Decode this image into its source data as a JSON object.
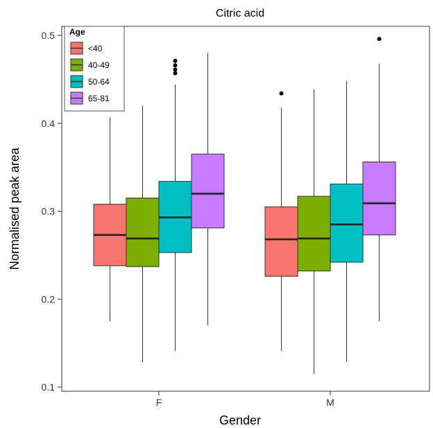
{
  "chart_data": {
    "type": "boxplot",
    "title": "Citric acid",
    "xlabel": "Gender",
    "ylabel": "Normalised peak area",
    "categories": [
      "F",
      "M"
    ],
    "ylim": [
      0.1,
      0.52
    ],
    "yticks": [
      0.1,
      0.2,
      0.3,
      0.4,
      0.5
    ],
    "ytick_labels": [
      "0.1",
      "0.2",
      "0.3",
      "0.4",
      "0.5"
    ],
    "legend": {
      "title": "Age",
      "position": "top-left"
    },
    "grid": false,
    "series": [
      {
        "name": "<40",
        "color": "#F8766D",
        "boxes": [
          {
            "category": "F",
            "whisker_low": 0.175,
            "q1": 0.238,
            "median": 0.273,
            "q3": 0.308,
            "whisker_high": 0.407,
            "outliers": []
          },
          {
            "category": "M",
            "whisker_low": 0.141,
            "q1": 0.226,
            "median": 0.268,
            "q3": 0.305,
            "whisker_high": 0.418,
            "outliers": [
              0.434
            ]
          }
        ]
      },
      {
        "name": "40-49",
        "color": "#7CAE00",
        "boxes": [
          {
            "category": "F",
            "whisker_low": 0.128,
            "q1": 0.237,
            "median": 0.269,
            "q3": 0.315,
            "whisker_high": 0.42,
            "outliers": []
          },
          {
            "category": "M",
            "whisker_low": 0.115,
            "q1": 0.232,
            "median": 0.269,
            "q3": 0.317,
            "whisker_high": 0.439,
            "outliers": []
          }
        ]
      },
      {
        "name": "50-64",
        "color": "#00BFC4",
        "boxes": [
          {
            "category": "F",
            "whisker_low": 0.141,
            "q1": 0.253,
            "median": 0.293,
            "q3": 0.334,
            "whisker_high": 0.444,
            "outliers": [
              0.457,
              0.461,
              0.466,
              0.471
            ]
          },
          {
            "category": "M",
            "whisker_low": 0.129,
            "q1": 0.242,
            "median": 0.285,
            "q3": 0.331,
            "whisker_high": 0.448,
            "outliers": []
          }
        ]
      },
      {
        "name": "65-81",
        "color": "#C77CFF",
        "boxes": [
          {
            "category": "F",
            "whisker_low": 0.17,
            "q1": 0.281,
            "median": 0.32,
            "q3": 0.365,
            "whisker_high": 0.48,
            "outliers": []
          },
          {
            "category": "M",
            "whisker_low": 0.175,
            "q1": 0.273,
            "median": 0.309,
            "q3": 0.356,
            "whisker_high": 0.468,
            "outliers": [
              0.496
            ]
          }
        ]
      }
    ]
  }
}
